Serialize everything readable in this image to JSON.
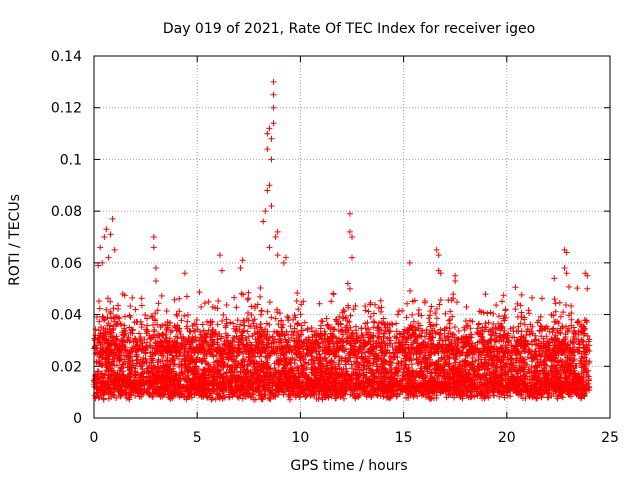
{
  "chart_data": {
    "type": "scatter",
    "title": "Day 019 of 2021, Rate Of TEC Index for receiver igeo",
    "xlabel": "GPS time / hours",
    "ylabel": "ROTI / TECUs",
    "xlim": [
      0,
      25
    ],
    "ylim": [
      0,
      0.14
    ],
    "x_ticks": [
      0,
      5,
      10,
      15,
      20,
      25
    ],
    "y_ticks": [
      0,
      0.02,
      0.04,
      0.06,
      0.08,
      0.1,
      0.12,
      0.14
    ],
    "x_tick_labels": [
      "0",
      "5",
      "10",
      "15",
      "20",
      "25"
    ],
    "y_tick_labels": [
      "0",
      "0.02",
      "0.04",
      "0.06",
      "0.08",
      "0.1",
      "0.12",
      "0.14"
    ],
    "grid": true,
    "marker": "plus",
    "color": "#ff0000",
    "series": [
      {
        "x_range": [
          0,
          24
        ],
        "baseline_range": [
          0.005,
          0.035
        ],
        "points": [
          [
            0.3,
            0.066
          ],
          [
            0.5,
            0.07
          ],
          [
            0.6,
            0.073
          ],
          [
            0.8,
            0.071
          ],
          [
            0.9,
            0.077
          ],
          [
            1.0,
            0.065
          ],
          [
            0.7,
            0.062
          ],
          [
            0.2,
            0.059
          ],
          [
            0.4,
            0.06
          ],
          [
            2.9,
            0.07
          ],
          [
            2.9,
            0.066
          ],
          [
            3.0,
            0.058
          ],
          [
            3.0,
            0.053
          ],
          [
            4.4,
            0.056
          ],
          [
            4.5,
            0.047
          ],
          [
            6.1,
            0.063
          ],
          [
            6.2,
            0.057
          ],
          [
            7.1,
            0.058
          ],
          [
            7.2,
            0.061
          ],
          [
            8.2,
            0.076
          ],
          [
            8.3,
            0.08
          ],
          [
            8.4,
            0.088
          ],
          [
            8.5,
            0.09
          ],
          [
            8.4,
            0.104
          ],
          [
            8.4,
            0.11
          ],
          [
            8.5,
            0.112
          ],
          [
            8.6,
            0.1
          ],
          [
            8.6,
            0.108
          ],
          [
            8.7,
            0.114
          ],
          [
            8.7,
            0.12
          ],
          [
            8.7,
            0.125
          ],
          [
            8.7,
            0.13
          ],
          [
            8.6,
            0.082
          ],
          [
            8.8,
            0.07
          ],
          [
            8.9,
            0.072
          ],
          [
            8.5,
            0.066
          ],
          [
            8.9,
            0.063
          ],
          [
            9.2,
            0.06
          ],
          [
            9.3,
            0.062
          ],
          [
            12.4,
            0.079
          ],
          [
            12.4,
            0.072
          ],
          [
            12.5,
            0.07
          ],
          [
            12.5,
            0.062
          ],
          [
            12.3,
            0.052
          ],
          [
            12.4,
            0.05
          ],
          [
            15.3,
            0.06
          ],
          [
            16.6,
            0.065
          ],
          [
            16.7,
            0.063
          ],
          [
            16.7,
            0.057
          ],
          [
            16.8,
            0.056
          ],
          [
            17.5,
            0.055
          ],
          [
            17.5,
            0.053
          ],
          [
            22.3,
            0.054
          ],
          [
            22.8,
            0.065
          ],
          [
            22.9,
            0.064
          ],
          [
            22.8,
            0.058
          ],
          [
            22.9,
            0.056
          ],
          [
            23.8,
            0.056
          ],
          [
            23.9,
            0.055
          ],
          [
            23.9,
            0.05
          ]
        ]
      }
    ]
  }
}
